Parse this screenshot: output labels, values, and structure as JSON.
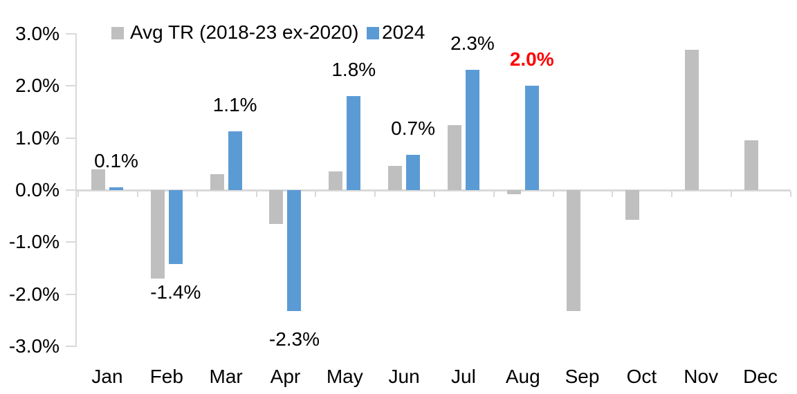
{
  "chart_data": {
    "type": "bar",
    "title": "",
    "categories": [
      "Jan",
      "Feb",
      "Mar",
      "Apr",
      "May",
      "Jun",
      "Jul",
      "Aug",
      "Sep",
      "Oct",
      "Nov",
      "Dec"
    ],
    "series": [
      {
        "name": "Avg TR (2018-23 ex-2020)",
        "color": "#bfbfbf",
        "values": [
          0.4,
          -1.7,
          0.3,
          -0.65,
          0.36,
          0.46,
          1.25,
          -0.08,
          -2.33,
          -0.57,
          2.7,
          0.95
        ]
      },
      {
        "name": "2024",
        "color": "#5b9bd5",
        "values": [
          0.05,
          -1.42,
          1.13,
          -2.33,
          1.81,
          0.68,
          2.31,
          2.0,
          null,
          null,
          null,
          null
        ]
      }
    ],
    "data_labels": [
      {
        "text": "0.1%",
        "color": "#000000",
        "bold": false
      },
      {
        "text": "-1.4%",
        "color": "#000000",
        "bold": false
      },
      {
        "text": "1.1%",
        "color": "#000000",
        "bold": false
      },
      {
        "text": "-2.3%",
        "color": "#000000",
        "bold": false
      },
      {
        "text": "1.8%",
        "color": "#000000",
        "bold": false
      },
      {
        "text": "0.7%",
        "color": "#000000",
        "bold": false
      },
      {
        "text": "2.3%",
        "color": "#000000",
        "bold": false
      },
      {
        "text": "2.0%",
        "color": "#ff0000",
        "bold": true
      },
      null,
      null,
      null,
      null
    ],
    "y_axis": {
      "min": -3,
      "max": 3,
      "step": 1,
      "tick_labels": [
        "3.0%",
        "2.0%",
        "1.0%",
        "0.0%",
        "-1.0%",
        "-2.0%",
        "-3.0%"
      ],
      "tick_values": [
        3,
        2,
        1,
        0,
        -1,
        -2,
        -3
      ],
      "format": "percent"
    },
    "x_axis": {
      "labels": [
        "Jan",
        "Feb",
        "Mar",
        "Apr",
        "May",
        "Jun",
        "Jul",
        "Aug",
        "Sep",
        "Oct",
        "Nov",
        "Dec"
      ]
    },
    "legend": {
      "position": "top",
      "entries": [
        {
          "label": "Avg TR (2018-23 ex-2020)",
          "color": "#bfbfbf"
        },
        {
          "label": "2024",
          "color": "#5b9bd5"
        }
      ]
    },
    "grid": false,
    "axis_color": "#d9d9d9",
    "highlight_color": "#ff0000"
  }
}
